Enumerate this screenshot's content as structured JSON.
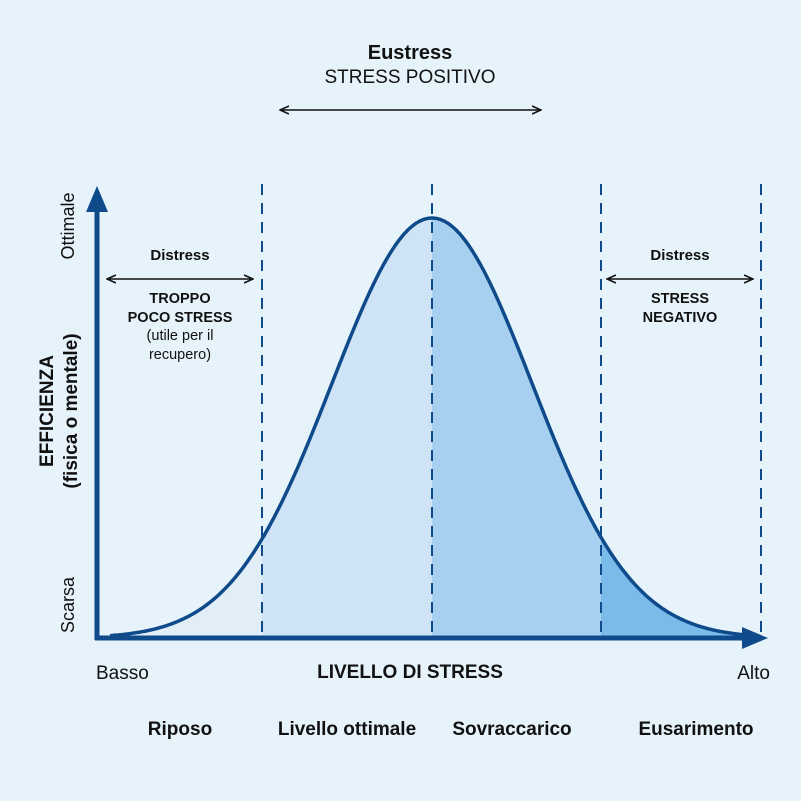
{
  "colors": {
    "background": "#e6f3fb",
    "axis": "#0f4a8a",
    "curve": "#0f4a8a",
    "zone_riposo": "#e1eef8",
    "zone_ottimale": "#cfe3f6",
    "zone_sovraccarico": "#a7d0f0",
    "zone_esaurimento": "#7bbbea"
  },
  "top": {
    "title": "Eustress",
    "subtitle": "STRESS POSITIVO"
  },
  "left_zone": {
    "title": "Distress",
    "line1": "TROPPO",
    "line2": "POCO STRESS",
    "line3": "(utile per il",
    "line4": "recupero)"
  },
  "right_zone": {
    "title": "Distress",
    "line1": "STRESS",
    "line2": "NEGATIVO"
  },
  "y_axis": {
    "label_line1": "EFFICIENZA",
    "label_line2": "(fisica o mentale)",
    "top_tick": "Ottimale",
    "bottom_tick": "Scarsa"
  },
  "x_axis": {
    "label": "LIVELLO DI STRESS",
    "low": "Basso",
    "high": "Alto"
  },
  "zones": [
    {
      "label": "Riposo"
    },
    {
      "label": "Livello ottimale"
    },
    {
      "label": "Sovraccarico"
    },
    {
      "label": "Eusarimento"
    }
  ]
}
